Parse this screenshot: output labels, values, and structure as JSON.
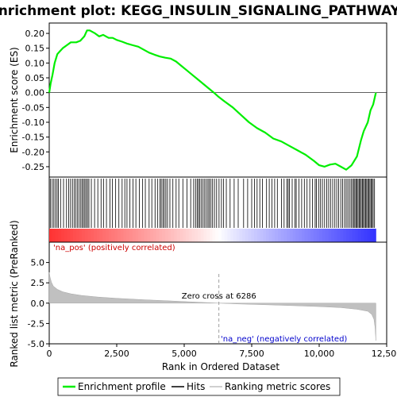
{
  "chart_data": {
    "type": "line",
    "title": "Enrichment plot: KEGG_INSULIN_SIGNALING_PATHWAY",
    "xlabel": "Rank in Ordered Dataset",
    "ylabel_top": "Enrichment score (ES)",
    "ylabel_bottom": "Ranked list metric (PreRanked)",
    "xlim": [
      0,
      12500
    ],
    "x_ticks": [
      0,
      2500,
      5000,
      7500,
      10000,
      12500
    ],
    "x_tick_labels": [
      "0",
      "2,500",
      "5,000",
      "7,500",
      "10,000",
      "12,500"
    ],
    "es_ylim": [
      -0.285,
      0.235
    ],
    "es_ticks": [
      0.2,
      0.15,
      0.1,
      0.05,
      0.0,
      -0.05,
      -0.1,
      -0.15,
      -0.2,
      -0.25
    ],
    "es_tick_labels": [
      "0.20",
      "0.15",
      "0.10",
      "0.05",
      "0.00",
      "-0.05",
      "-0.10",
      "-0.15",
      "-0.20",
      "-0.25"
    ],
    "metric_ylim": [
      -5,
      7.5
    ],
    "metric_ticks": [
      5,
      2.5,
      0,
      -2.5,
      -5
    ],
    "metric_tick_labels": [
      "5.0",
      "2.5",
      "0.0",
      "-2.5",
      "-5.0"
    ],
    "total_genes": 12100,
    "zero_cross": 6286,
    "zero_cross_label": "Zero cross at 6286",
    "pos_label": "'na_pos' (positively correlated)",
    "neg_label": "'na_neg' (negatively correlated)",
    "series": [
      {
        "name": "Enrichment profile",
        "color": "#00ee00",
        "points": [
          [
            0,
            0.0
          ],
          [
            50,
            0.03
          ],
          [
            120,
            0.06
          ],
          [
            200,
            0.1
          ],
          [
            300,
            0.13
          ],
          [
            400,
            0.14
          ],
          [
            500,
            0.15
          ],
          [
            650,
            0.16
          ],
          [
            800,
            0.17
          ],
          [
            1000,
            0.17
          ],
          [
            1150,
            0.175
          ],
          [
            1300,
            0.19
          ],
          [
            1400,
            0.21
          ],
          [
            1500,
            0.21
          ],
          [
            1700,
            0.2
          ],
          [
            1850,
            0.19
          ],
          [
            2000,
            0.195
          ],
          [
            2200,
            0.185
          ],
          [
            2350,
            0.185
          ],
          [
            2500,
            0.178
          ],
          [
            2700,
            0.172
          ],
          [
            2900,
            0.165
          ],
          [
            3100,
            0.16
          ],
          [
            3300,
            0.155
          ],
          [
            3500,
            0.145
          ],
          [
            3700,
            0.135
          ],
          [
            3900,
            0.128
          ],
          [
            4100,
            0.122
          ],
          [
            4300,
            0.118
          ],
          [
            4500,
            0.115
          ],
          [
            4700,
            0.105
          ],
          [
            4900,
            0.09
          ],
          [
            5100,
            0.075
          ],
          [
            5300,
            0.06
          ],
          [
            5500,
            0.045
          ],
          [
            5700,
            0.03
          ],
          [
            5900,
            0.015
          ],
          [
            6100,
            0.0
          ],
          [
            6286,
            -0.015
          ],
          [
            6500,
            -0.03
          ],
          [
            6800,
            -0.05
          ],
          [
            7100,
            -0.075
          ],
          [
            7400,
            -0.1
          ],
          [
            7700,
            -0.12
          ],
          [
            8000,
            -0.135
          ],
          [
            8300,
            -0.155
          ],
          [
            8600,
            -0.165
          ],
          [
            8900,
            -0.18
          ],
          [
            9200,
            -0.195
          ],
          [
            9500,
            -0.21
          ],
          [
            9800,
            -0.23
          ],
          [
            10000,
            -0.245
          ],
          [
            10200,
            -0.25
          ],
          [
            10400,
            -0.243
          ],
          [
            10600,
            -0.24
          ],
          [
            10800,
            -0.25
          ],
          [
            11000,
            -0.26
          ],
          [
            11200,
            -0.245
          ],
          [
            11400,
            -0.215
          ],
          [
            11550,
            -0.16
          ],
          [
            11650,
            -0.13
          ],
          [
            11800,
            -0.1
          ],
          [
            11900,
            -0.06
          ],
          [
            12000,
            -0.04
          ],
          [
            12050,
            -0.02
          ],
          [
            12100,
            0.0
          ]
        ]
      }
    ],
    "hits": [
      40,
      110,
      170,
      230,
      290,
      340,
      420,
      530,
      640,
      720,
      790,
      860,
      930,
      990,
      1050,
      1110,
      1170,
      1220,
      1270,
      1320,
      1370,
      1420,
      1470,
      1560,
      1680,
      1800,
      1920,
      2010,
      2120,
      2250,
      2340,
      2460,
      2580,
      2700,
      2800,
      2880,
      2990,
      3100,
      3210,
      3340,
      3460,
      3560,
      3700,
      3800,
      3920,
      4020,
      4100,
      4150,
      4210,
      4260,
      4320,
      4380,
      4470,
      4580,
      4700,
      4800,
      4950,
      5100,
      5240,
      5350,
      5420,
      5480,
      5530,
      5580,
      5640,
      5700,
      5760,
      5820,
      5880,
      5930,
      5990,
      6050,
      6120,
      6200,
      6290,
      6380,
      6460,
      6560,
      6700,
      6850,
      7000,
      7200,
      7350,
      7500,
      7600,
      7700,
      7800,
      7900,
      8050,
      8150,
      8250,
      8350,
      8450,
      8600,
      8700,
      8800,
      8850,
      8900,
      9000,
      9100,
      9150,
      9250,
      9350,
      9450,
      9550,
      9650,
      9750,
      9850,
      9900,
      9980,
      10050,
      10120,
      10200,
      10280,
      10350,
      10420,
      10500,
      10580,
      10650,
      10720,
      10800,
      10870,
      10940,
      11000,
      11060,
      11120,
      11180,
      11230,
      11280,
      11320,
      11360,
      11400,
      11440,
      11480,
      11520,
      11560,
      11600,
      11640,
      11680,
      11720,
      11760,
      11800,
      11840,
      11880,
      11920,
      11960,
      12000,
      12050
    ],
    "rank_metric": {
      "points": [
        [
          0,
          3.8
        ],
        [
          30,
          3.2
        ],
        [
          80,
          2.6
        ],
        [
          150,
          2.1
        ],
        [
          300,
          1.7
        ],
        [
          500,
          1.4
        ],
        [
          800,
          1.15
        ],
        [
          1200,
          0.95
        ],
        [
          1800,
          0.75
        ],
        [
          2500,
          0.6
        ],
        [
          3500,
          0.42
        ],
        [
          4500,
          0.27
        ],
        [
          5500,
          0.12
        ],
        [
          6286,
          0.0
        ],
        [
          7000,
          -0.1
        ],
        [
          8000,
          -0.2
        ],
        [
          9000,
          -0.3
        ],
        [
          10000,
          -0.42
        ],
        [
          10800,
          -0.55
        ],
        [
          11400,
          -0.75
        ],
        [
          11800,
          -1.0
        ],
        [
          11950,
          -1.4
        ],
        [
          12030,
          -2.0
        ],
        [
          12070,
          -3.0
        ],
        [
          12100,
          -4.6
        ]
      ]
    },
    "legend": {
      "placement": "bottom",
      "entries": [
        "Enrichment profile",
        "Hits",
        "Ranking metric scores"
      ]
    }
  }
}
